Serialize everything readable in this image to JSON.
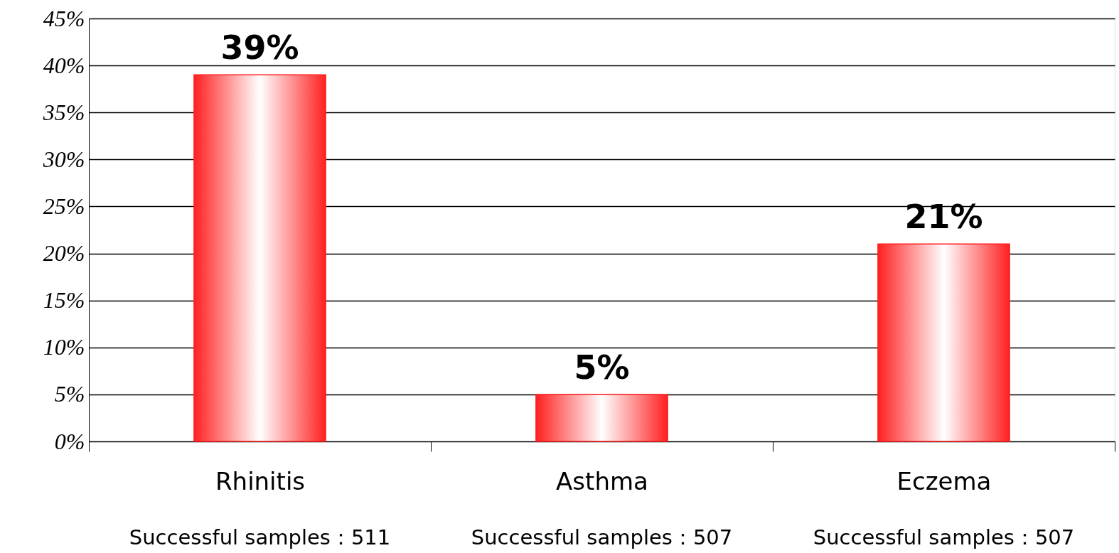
{
  "chart_data": {
    "type": "bar",
    "categories": [
      "Rhinitis",
      "Asthma",
      "Eczema"
    ],
    "values": [
      39,
      5,
      21
    ],
    "value_labels": [
      "39%",
      "5%",
      "21%"
    ],
    "color": "#ff2020",
    "ylim": [
      0,
      45
    ],
    "yticks": [
      {
        "value": 0,
        "label": "0%"
      },
      {
        "value": 5,
        "label": "5%"
      },
      {
        "value": 10,
        "label": "10%"
      },
      {
        "value": 15,
        "label": "15%"
      },
      {
        "value": 20,
        "label": "20%"
      },
      {
        "value": 25,
        "label": "25%"
      },
      {
        "value": 30,
        "label": "30%"
      },
      {
        "value": 35,
        "label": "35%"
      },
      {
        "value": 40,
        "label": "40%"
      },
      {
        "value": 45,
        "label": "45%"
      }
    ],
    "grid": "y",
    "annotations": [
      "Successful samples：511",
      "Successful samples：507",
      "Successful samples：507"
    ]
  }
}
